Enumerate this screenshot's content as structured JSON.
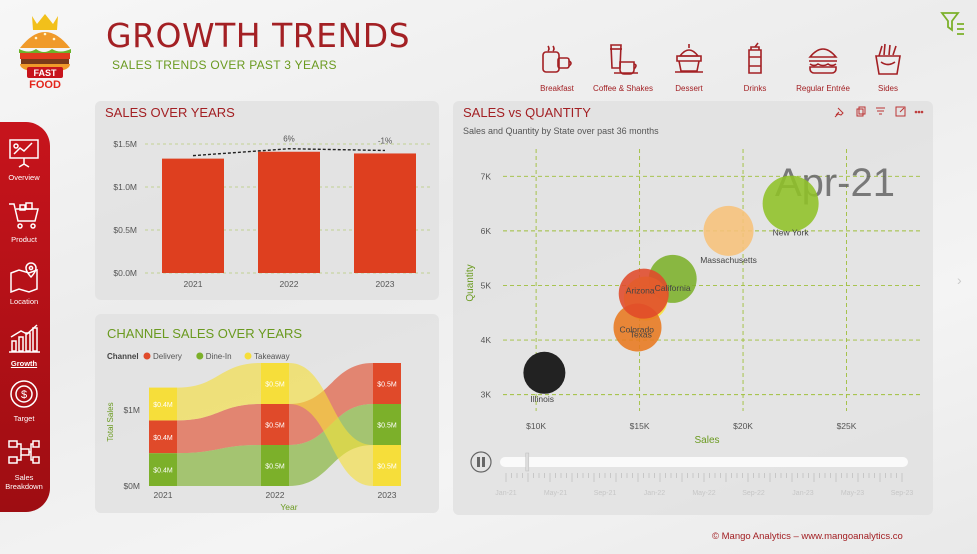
{
  "header": {
    "title": "GROWTH TRENDS",
    "subtitle": "SALES TRENDS OVER PAST 3 YEARS",
    "logo_text": [
      "FAST",
      "FOOD"
    ]
  },
  "categories": [
    {
      "label": "Breakfast",
      "icon": "breakfast-icon"
    },
    {
      "label": "Coffee & Shakes",
      "icon": "coffee-icon"
    },
    {
      "label": "Dessert",
      "icon": "dessert-icon"
    },
    {
      "label": "Drinks",
      "icon": "drinks-icon"
    },
    {
      "label": "Regular Entrée",
      "icon": "burger-icon"
    },
    {
      "label": "Sides",
      "icon": "fries-icon"
    }
  ],
  "sidebar": {
    "items": [
      {
        "label": "Overview",
        "icon": "presentation-icon"
      },
      {
        "label": "Product",
        "icon": "cart-icon"
      },
      {
        "label": "Location",
        "icon": "map-pin-icon"
      },
      {
        "label": "Growth",
        "icon": "bar-growth-icon",
        "active": true
      },
      {
        "label": "Target",
        "icon": "target-icon"
      },
      {
        "label": "Sales Breakdown",
        "icon": "breakdown-icon"
      }
    ]
  },
  "colors": {
    "brand_red": "#a32024",
    "bar_red": "#de3f1f",
    "green": "#6a9a1f",
    "delivery": "#e04a2a",
    "dinein": "#7cb02a",
    "takeaway": "#f6de3a",
    "sidebar": "#c7141c"
  },
  "footer": "© Mango Analytics – www.mangoanalytics.co",
  "chart_data": [
    {
      "type": "bar",
      "title": "SALES OVER YEARS",
      "categories": [
        "2021",
        "2022",
        "2023"
      ],
      "values": [
        1.33,
        1.41,
        1.39
      ],
      "growth_labels": [
        "",
        "6%",
        "-1%"
      ],
      "y_ticks": [
        "$0.0M",
        "$0.5M",
        "$1.0M",
        "$1.5M"
      ],
      "ylim": [
        0,
        1.5
      ],
      "trend_line": true
    },
    {
      "type": "bar",
      "stacked": true,
      "title": "CHANNEL SALES OVER YEARS",
      "legend_title": "Channel",
      "categories": [
        "2021",
        "2022",
        "2023"
      ],
      "series": [
        {
          "name": "Delivery",
          "values": [
            0.4,
            0.5,
            0.5
          ],
          "color": "#e04a2a"
        },
        {
          "name": "Dine-In",
          "values": [
            0.4,
            0.5,
            0.5
          ],
          "color": "#7cb02a"
        },
        {
          "name": "Takeaway",
          "values": [
            0.4,
            0.5,
            0.5
          ],
          "color": "#f6de3a"
        }
      ],
      "stack_order_bottom_to_top": [
        [
          "Dine-In",
          "Delivery",
          "Takeaway"
        ],
        [
          "Dine-In",
          "Delivery",
          "Takeaway"
        ],
        [
          "Takeaway",
          "Dine-In",
          "Delivery"
        ]
      ],
      "data_labels": [
        "$0.4M",
        "$0.5M"
      ],
      "xlabel": "Year",
      "ylabel": "Total Sales",
      "y_ticks": [
        "$0M",
        "$1M"
      ]
    },
    {
      "type": "scatter",
      "title": "SALES vs QUANTITY",
      "subtitle": "Sales and Quantity by State over past 36 months",
      "xlabel": "Sales",
      "ylabel": "Quantity",
      "x_ticks": [
        "$10K",
        "$15K",
        "$20K",
        "$25K"
      ],
      "y_ticks": [
        "3K",
        "4K",
        "5K",
        "6K",
        "7K"
      ],
      "xlim": [
        8400,
        28600
      ],
      "ylim": [
        2700,
        7500
      ],
      "frame_label": "Apr-21",
      "points": [
        {
          "label": "New York",
          "x": 22300,
          "y": 6500,
          "size": 28,
          "color": "#8fc127"
        },
        {
          "label": "Massachusetts",
          "x": 19300,
          "y": 6000,
          "size": 25,
          "color": "#f7c27a"
        },
        {
          "label": "California",
          "x": 16600,
          "y": 5120,
          "size": 24,
          "color": "#7cb02a"
        },
        {
          "label": "Arizona",
          "x": 15300,
          "y": 4760,
          "size": 22,
          "color": "#f6e53a"
        },
        {
          "label": "Colorado",
          "x": 14900,
          "y": 4230,
          "size": 24,
          "color": "#e8791f"
        },
        {
          "label": "Texas",
          "x": 15200,
          "y": 4850,
          "size": 25,
          "color": "#e04a2a"
        },
        {
          "label": "Illinois",
          "x": 10400,
          "y": 3400,
          "size": 21,
          "color": "#222222"
        }
      ],
      "play_axis_ticks": [
        "Jan-21",
        "May-21",
        "Sep-21",
        "Jan-22",
        "May-22",
        "Sep-22",
        "Jan-23",
        "May-23",
        "Sep-23"
      ],
      "play_position": 0.08
    }
  ]
}
